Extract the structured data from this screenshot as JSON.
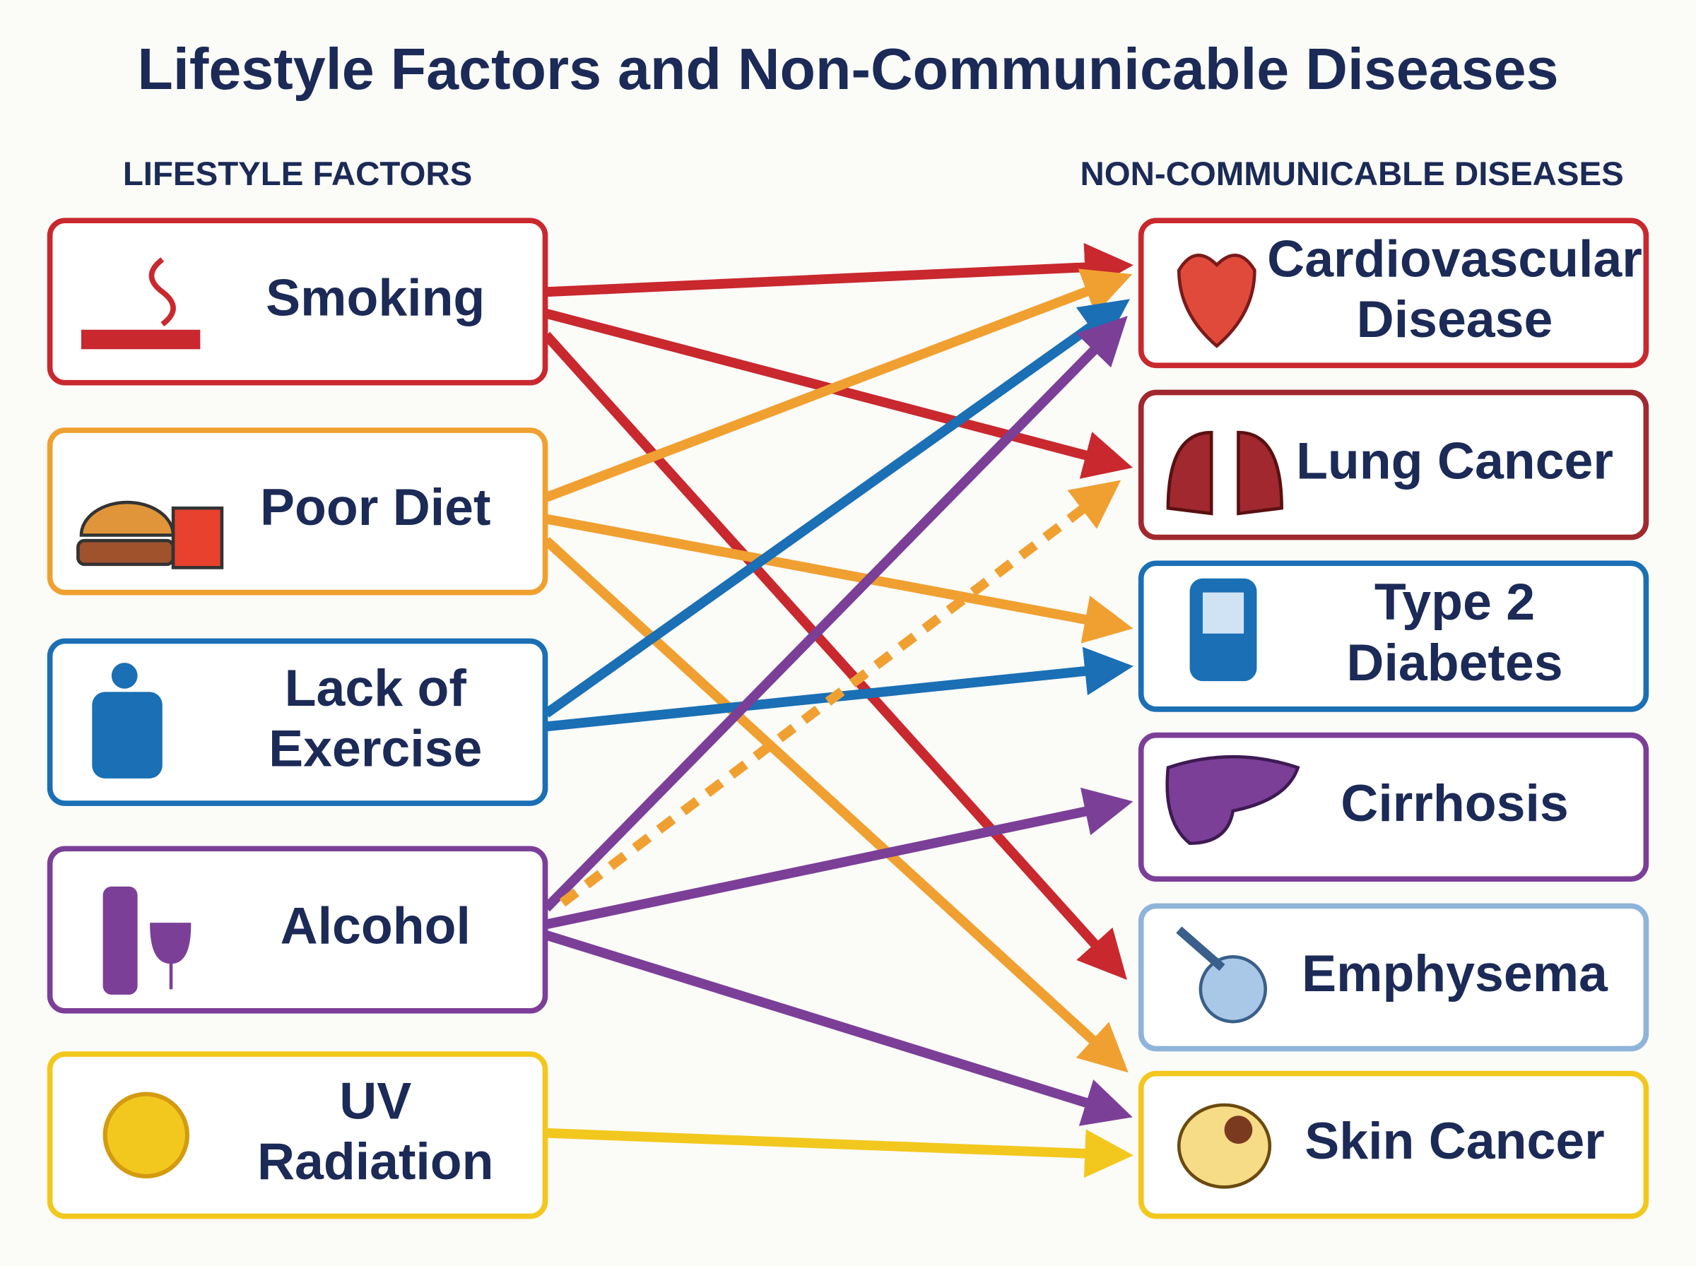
{
  "title": "Lifestyle Factors and Non-Communicable Diseases",
  "left_header": "LIFESTYLE FACTORS",
  "right_header": "NON-COMMUNICABLE DISEASES",
  "factors": [
    {
      "lines": [
        "Smoking"
      ],
      "color": "#c8282e"
    },
    {
      "lines": [
        "Poor Diet"
      ],
      "color": "#f0a030"
    },
    {
      "lines": [
        "Lack of",
        "Exercise"
      ],
      "color": "#1a6fb5"
    },
    {
      "lines": [
        "Alcohol"
      ],
      "color": "#7b3f98"
    },
    {
      "lines": [
        "UV",
        "Radiation"
      ],
      "color": "#f2c81e"
    }
  ],
  "diseases": [
    {
      "lines": [
        "Cardiovascular",
        "Disease"
      ],
      "color": "#c8282e"
    },
    {
      "lines": [
        "Lung Cancer"
      ],
      "color": "#a0282e"
    },
    {
      "lines": [
        "Type 2",
        "Diabetes"
      ],
      "color": "#1a6fb5"
    },
    {
      "lines": [
        "Cirrhosis"
      ],
      "color": "#7b3f98"
    },
    {
      "lines": [
        "Emphysema"
      ],
      "color": "#8fb4da"
    },
    {
      "lines": [
        "Skin Cancer"
      ],
      "color": "#f2c81e"
    }
  ]
}
